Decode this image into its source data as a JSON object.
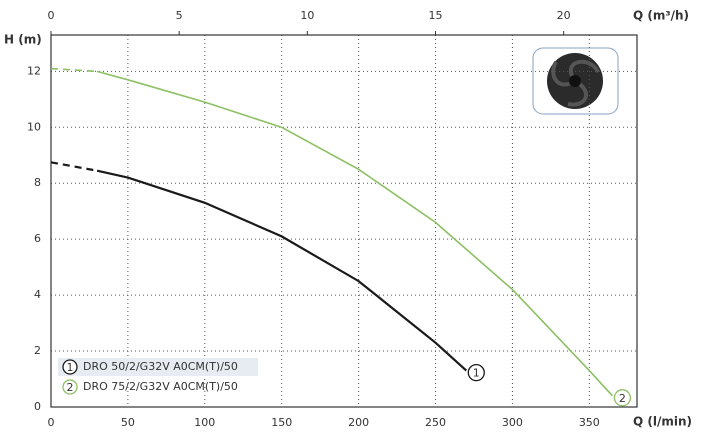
{
  "chart_data": {
    "type": "line",
    "ylabel": "H (m)",
    "xlabel": "Q (l/min)",
    "x2label": "Q (m³/h)",
    "xlim": [
      0,
      381
    ],
    "xticks": [
      0,
      50,
      100,
      150,
      200,
      250,
      300,
      350
    ],
    "x2lim": [
      0,
      22.86
    ],
    "x2ticks": [
      0,
      5,
      10,
      15,
      20
    ],
    "ylim": [
      0,
      13.3
    ],
    "yticks": [
      0,
      2,
      4,
      6,
      8,
      10,
      12
    ],
    "grid": true,
    "legend": "lower left",
    "series": [
      {
        "name": "DRO 50/2/G32V A0CM(T)/50",
        "marker_label": "1",
        "color": "#1a1a1a",
        "dashed_until": 30,
        "x": [
          0,
          30,
          50,
          100,
          150,
          200,
          250,
          270
        ],
        "values": [
          8.75,
          8.45,
          8.2,
          7.3,
          6.1,
          4.5,
          2.3,
          1.3
        ]
      },
      {
        "name": "DRO 75/2/G32V A0CM(T)/50",
        "marker_label": "2",
        "color": "#8cc063",
        "dashed_until": 30,
        "x": [
          0,
          30,
          50,
          100,
          150,
          200,
          250,
          300,
          350,
          365
        ],
        "values": [
          12.1,
          12.0,
          11.7,
          10.9,
          10.0,
          8.5,
          6.6,
          4.2,
          1.3,
          0.4
        ]
      }
    ]
  }
}
